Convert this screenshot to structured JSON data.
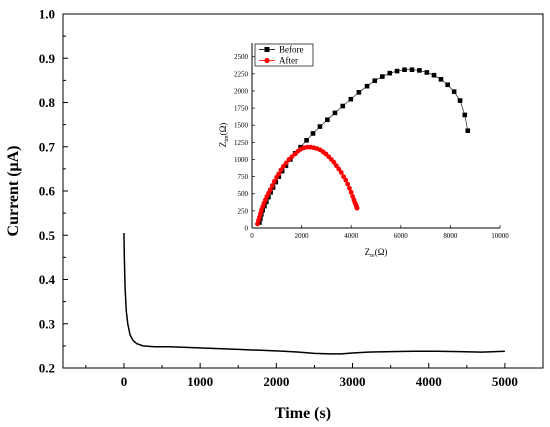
{
  "chart_data": [
    {
      "type": "line",
      "xlabel": "Time (s)",
      "ylabel": "Current (μA)",
      "xlim": [
        -800,
        5500
      ],
      "ylim": [
        0.2,
        1.0
      ],
      "xticks": [
        0,
        1000,
        2000,
        3000,
        4000,
        5000
      ],
      "yticks": [
        0.2,
        0.3,
        0.4,
        0.5,
        0.6,
        0.7,
        0.8,
        0.9,
        1.0
      ],
      "xtick_labels": [
        "0",
        "1000",
        "2000",
        "3000",
        "4000",
        "5000"
      ],
      "ytick_labels": [
        "0.2",
        "0.3",
        "0.4",
        "0.5",
        "0.6",
        "0.7",
        "0.8",
        "0.9",
        "1.0"
      ],
      "grid": false,
      "series": [
        {
          "color": "#000000",
          "x": [
            0,
            5,
            15,
            30,
            50,
            80,
            120,
            170,
            250,
            400,
            600,
            900,
            1200,
            1500,
            1800,
            2100,
            2300,
            2500,
            2700,
            2850,
            3000,
            3200,
            3500,
            3800,
            4100,
            4400,
            4700,
            5000
          ],
          "y": [
            0.505,
            0.45,
            0.38,
            0.33,
            0.3,
            0.275,
            0.262,
            0.255,
            0.25,
            0.248,
            0.248,
            0.246,
            0.244,
            0.242,
            0.24,
            0.238,
            0.236,
            0.233,
            0.232,
            0.232,
            0.234,
            0.236,
            0.237,
            0.238,
            0.238,
            0.237,
            0.236,
            0.238
          ]
        }
      ]
    },
    {
      "type": "scatter",
      "xlabel": "Z",
      "xlabel_sub": "re",
      "xlabel_unit": "(Ω)",
      "ylabel": "Z",
      "ylabel_sub": "im",
      "ylabel_unit": "(Ω)",
      "xlim": [
        0,
        10000
      ],
      "ylim": [
        0,
        2700
      ],
      "xticks": [
        0,
        2000,
        4000,
        6000,
        8000,
        10000
      ],
      "yticks": [
        0,
        250,
        500,
        750,
        1000,
        1250,
        1500,
        1750,
        2000,
        2250,
        2500
      ],
      "xtick_labels": [
        "0",
        "2000",
        "4000",
        "6000",
        "8000",
        "10000"
      ],
      "ytick_labels": [
        "0",
        "250",
        "500",
        "750",
        "1000",
        "1250",
        "1500",
        "1750",
        "2000",
        "2250",
        "2500"
      ],
      "legend_position": "top-left",
      "grid": false,
      "series": [
        {
          "name": "Before",
          "color": "#000000",
          "marker": "square",
          "x": [
            300,
            338,
            376,
            430,
            500,
            575,
            660,
            750,
            850,
            960,
            1080,
            1215,
            1370,
            1545,
            1740,
            1960,
            2200,
            2460,
            2740,
            3040,
            3345,
            3660,
            3985,
            4310,
            4640,
            4950,
            5255,
            5555,
            5850,
            6150,
            6450,
            6750,
            7050,
            7340,
            7620,
            7890,
            8150,
            8390,
            8580,
            8700
          ],
          "y": [
            80,
            140,
            200,
            260,
            320,
            380,
            450,
            520,
            590,
            670,
            750,
            830,
            910,
            1000,
            1090,
            1180,
            1280,
            1380,
            1480,
            1580,
            1680,
            1780,
            1880,
            1980,
            2070,
            2150,
            2210,
            2260,
            2290,
            2310,
            2310,
            2300,
            2270,
            2230,
            2170,
            2090,
            1990,
            1860,
            1650,
            1420
          ]
        },
        {
          "name": "After",
          "color": "#ff0000",
          "marker": "circle",
          "x": [
            220,
            260,
            300,
            340,
            380,
            430,
            480,
            540,
            600,
            670,
            740,
            820,
            900,
            990,
            1080,
            1170,
            1270,
            1380,
            1490,
            1610,
            1730,
            1850,
            1970,
            2100,
            2230,
            2360,
            2490,
            2620,
            2750,
            2870,
            2980,
            3090,
            3200,
            3300,
            3400,
            3500,
            3600,
            3690,
            3780,
            3860,
            3930,
            4000,
            4060,
            4110,
            4150,
            4190,
            4210,
            4225,
            4235
          ],
          "y": [
            60,
            110,
            160,
            210,
            260,
            310,
            360,
            410,
            460,
            510,
            560,
            620,
            680,
            740,
            790,
            850,
            900,
            950,
            1000,
            1040,
            1080,
            1120,
            1150,
            1170,
            1180,
            1180,
            1170,
            1160,
            1140,
            1110,
            1080,
            1040,
            1000,
            960,
            910,
            860,
            810,
            750,
            700,
            640,
            580,
            520,
            460,
            410,
            370,
            340,
            320,
            300,
            290
          ]
        }
      ]
    }
  ]
}
